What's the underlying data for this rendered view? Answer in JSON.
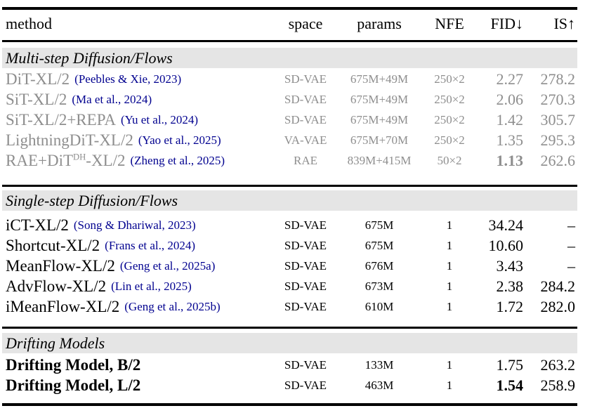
{
  "colors": {
    "text": "#000000",
    "muted_text": "#8e8e8e",
    "citation": "#00008f",
    "band_bg": "#e5e5e5",
    "rule": "#000000"
  },
  "table": {
    "columns": {
      "method": "method",
      "space": "space",
      "params": "params",
      "nfe": "NFE",
      "fid": "FID↓",
      "is": "IS↑"
    },
    "sections": [
      {
        "header": "Multi-step Diffusion/Flows",
        "style": "muted",
        "rows": [
          {
            "method": "DiT-XL/2",
            "cite": "(Peebles & Xie, 2023)",
            "space": "SD-VAE",
            "params": "675M+49M",
            "nfe": "250×2",
            "fid": "2.27",
            "is": "278.2"
          },
          {
            "method": "SiT-XL/2",
            "cite": "(Ma et al., 2024)",
            "space": "SD-VAE",
            "params": "675M+49M",
            "nfe": "250×2",
            "fid": "2.06",
            "is": "270.3"
          },
          {
            "method": "SiT-XL/2+REPA",
            "cite": "(Yu et al., 2024)",
            "space": "SD-VAE",
            "params": "675M+49M",
            "nfe": "250×2",
            "fid": "1.42",
            "is": "305.7"
          },
          {
            "method": "LightningDiT-XL/2",
            "cite": "(Yao et al., 2025)",
            "space": "VA-VAE",
            "params": "675M+70M",
            "nfe": "250×2",
            "fid": "1.35",
            "is": "295.3"
          },
          {
            "method": "RAE+DiT",
            "method_sup": "DH",
            "method_post": "-XL/2",
            "cite": "(Zheng et al., 2025)",
            "space": "RAE",
            "params": "839M+415M",
            "nfe": "50×2",
            "fid": "1.13",
            "fid_bold": true,
            "is": "262.6"
          }
        ]
      },
      {
        "header": "Single-step Diffusion/Flows",
        "style": "normal",
        "rows": [
          {
            "method": "iCT-XL/2",
            "cite": "(Song & Dhariwal, 2023)",
            "space": "SD-VAE",
            "params": "675M",
            "nfe": "1",
            "fid": "34.24",
            "is": "–"
          },
          {
            "method": "Shortcut-XL/2",
            "cite": "(Frans et al., 2024)",
            "space": "SD-VAE",
            "params": "675M",
            "nfe": "1",
            "fid": "10.60",
            "is": "–"
          },
          {
            "method": "MeanFlow-XL/2",
            "cite": "(Geng et al., 2025a)",
            "space": "SD-VAE",
            "params": "676M",
            "nfe": "1",
            "fid": "3.43",
            "is": "–"
          },
          {
            "method": "AdvFlow-XL/2",
            "cite": "(Lin et al., 2025)",
            "space": "SD-VAE",
            "params": "673M",
            "nfe": "1",
            "fid": "2.38",
            "is": "284.2"
          },
          {
            "method": "iMeanFlow-XL/2",
            "cite": "(Geng et al., 2025b)",
            "space": "SD-VAE",
            "params": "610M",
            "nfe": "1",
            "fid": "1.72",
            "is": "282.0"
          }
        ]
      },
      {
        "header": "Drifting Models",
        "style": "strong",
        "rows": [
          {
            "method": "Drifting Model, B/2",
            "space": "SD-VAE",
            "params": "133M",
            "nfe": "1",
            "fid": "1.75",
            "is": "263.2"
          },
          {
            "method": "Drifting Model, L/2",
            "space": "SD-VAE",
            "params": "463M",
            "nfe": "1",
            "fid": "1.54",
            "fid_bold": true,
            "is": "258.9"
          }
        ]
      }
    ]
  }
}
